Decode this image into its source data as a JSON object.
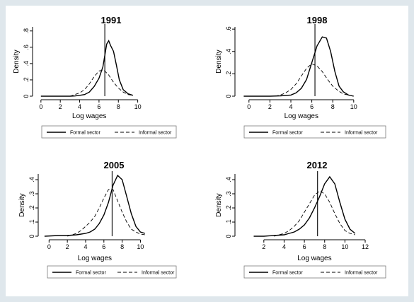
{
  "chart_data": [
    {
      "type": "line",
      "title": "1991",
      "xlabel": "Log wages",
      "ylabel": "Density",
      "xlim": [
        -0.5,
        15
      ],
      "ylim": [
        0,
        0.85
      ],
      "xticks": [
        "0",
        "2",
        "4",
        "6",
        "8",
        "10"
      ],
      "yticks": [
        "0",
        ".2",
        ".4",
        ".6",
        ".8"
      ],
      "vline": 6.6,
      "legend_position": "bottom",
      "series": [
        {
          "name": "Formal sector",
          "x": [
            0,
            2,
            3,
            3.5,
            4,
            4.5,
            5,
            5.5,
            6,
            6.4,
            6.8,
            7.0,
            7.2,
            7.5,
            7.8,
            8.1,
            8.5,
            9,
            9.5
          ],
          "y": [
            0,
            0,
            0,
            0.003,
            0.01,
            0.02,
            0.05,
            0.12,
            0.22,
            0.36,
            0.64,
            0.68,
            0.62,
            0.55,
            0.38,
            0.2,
            0.08,
            0.03,
            0.01
          ]
        },
        {
          "name": "Informal sector",
          "x": [
            3,
            3.5,
            4,
            4.5,
            5,
            5.5,
            6,
            6.5,
            7,
            7.5,
            8,
            8.5,
            9,
            9.5
          ],
          "y": [
            0,
            0.02,
            0.04,
            0.08,
            0.15,
            0.24,
            0.31,
            0.32,
            0.26,
            0.17,
            0.1,
            0.05,
            0.02,
            0.01
          ]
        }
      ]
    },
    {
      "type": "line",
      "title": "1998",
      "xlabel": "Log wages",
      "ylabel": "Density",
      "xlim": [
        -1,
        14
      ],
      "ylim": [
        0,
        0.62
      ],
      "xticks": [
        "0",
        "2",
        "4",
        "6",
        "8",
        "10"
      ],
      "yticks": [
        "0",
        ".2",
        ".4",
        ".6"
      ],
      "vline": 6.3,
      "legend_position": "bottom",
      "series": [
        {
          "name": "Formal sector",
          "x": [
            -0.5,
            2,
            3,
            4,
            4.5,
            5,
            5.5,
            6,
            6.5,
            7,
            7.4,
            7.8,
            8.2,
            8.6,
            9,
            9.5,
            10
          ],
          "y": [
            0,
            0,
            0.003,
            0.01,
            0.03,
            0.07,
            0.15,
            0.3,
            0.45,
            0.53,
            0.52,
            0.4,
            0.22,
            0.09,
            0.04,
            0.01,
            0
          ]
        },
        {
          "name": "Informal sector",
          "x": [
            2.5,
            3,
            3.5,
            4,
            4.5,
            5,
            5.5,
            6,
            6.5,
            7,
            7.5,
            8,
            8.5,
            9,
            9.5,
            10
          ],
          "y": [
            0,
            0.01,
            0.03,
            0.06,
            0.11,
            0.18,
            0.25,
            0.29,
            0.27,
            0.22,
            0.15,
            0.09,
            0.05,
            0.02,
            0.01,
            0
          ]
        }
      ]
    },
    {
      "type": "line",
      "title": "2005",
      "xlabel": "Log wages",
      "ylabel": "Density",
      "xlim": [
        -0.8,
        15
      ],
      "ylim": [
        0,
        0.44
      ],
      "xticks": [
        "0",
        "2",
        "4",
        "6",
        "8",
        "10"
      ],
      "yticks": [
        "0",
        ".1",
        ".2",
        ".3",
        ".4"
      ],
      "vline": 6.9,
      "legend_position": "bottom",
      "series": [
        {
          "name": "Formal sector",
          "x": [
            -0.5,
            1,
            2,
            3,
            3.5,
            4,
            4.5,
            5,
            5.5,
            6,
            6.5,
            7,
            7.5,
            8,
            8.5,
            9,
            9.5,
            10,
            10.5
          ],
          "y": [
            0,
            0.005,
            0.005,
            0.01,
            0.015,
            0.02,
            0.03,
            0.05,
            0.09,
            0.15,
            0.24,
            0.36,
            0.43,
            0.4,
            0.28,
            0.16,
            0.07,
            0.03,
            0.02
          ]
        },
        {
          "name": "Informal sector",
          "x": [
            2,
            3,
            3.5,
            4,
            4.5,
            5,
            5.5,
            6,
            6.5,
            7,
            7.5,
            8,
            8.5,
            9,
            9.5,
            10,
            10.5
          ],
          "y": [
            0,
            0.02,
            0.04,
            0.07,
            0.1,
            0.14,
            0.2,
            0.27,
            0.33,
            0.33,
            0.25,
            0.17,
            0.1,
            0.05,
            0.03,
            0.015,
            0.01
          ]
        }
      ]
    },
    {
      "type": "line",
      "title": "2012",
      "xlabel": "Log wages",
      "ylabel": "Density",
      "xlim": [
        -0.5,
        15
      ],
      "ylim": [
        0,
        0.44
      ],
      "xticks": [
        "2",
        "4",
        "6",
        "8",
        "10",
        "12"
      ],
      "yticks": [
        "0",
        ".1",
        ".2",
        ".3",
        ".4"
      ],
      "vline": 7.3,
      "legend_position": "bottom",
      "series": [
        {
          "name": "Formal sector",
          "x": [
            1,
            2,
            3,
            4,
            4.5,
            5,
            5.5,
            6,
            6.5,
            7,
            7.5,
            8,
            8.5,
            9,
            9.5,
            10,
            10.5,
            11
          ],
          "y": [
            0,
            0,
            0.005,
            0.01,
            0.02,
            0.03,
            0.05,
            0.08,
            0.13,
            0.2,
            0.28,
            0.37,
            0.42,
            0.37,
            0.24,
            0.12,
            0.05,
            0.02
          ]
        },
        {
          "name": "Informal sector",
          "x": [
            3,
            4,
            4.5,
            5,
            5.5,
            6,
            6.5,
            7,
            7.5,
            8,
            8.5,
            9,
            9.5,
            10,
            10.5,
            11
          ],
          "y": [
            0,
            0.02,
            0.04,
            0.07,
            0.11,
            0.17,
            0.23,
            0.29,
            0.32,
            0.3,
            0.24,
            0.16,
            0.09,
            0.04,
            0.02,
            0.01
          ]
        }
      ]
    }
  ]
}
